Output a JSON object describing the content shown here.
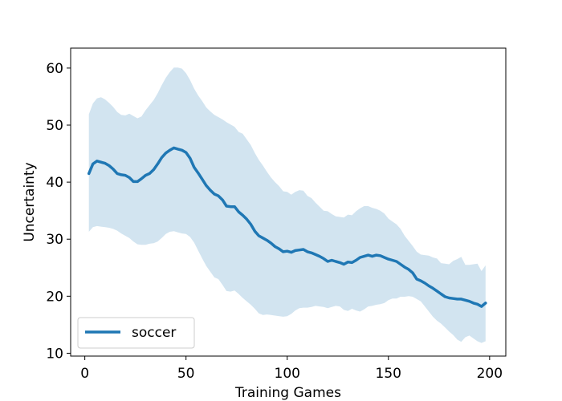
{
  "chart_data": {
    "type": "line",
    "title": "",
    "xlabel": "Training Games",
    "ylabel": "Uncertainty",
    "xlim": [
      -7,
      208
    ],
    "ylim": [
      9.5,
      63.5
    ],
    "xticks": [
      0,
      50,
      100,
      150,
      200
    ],
    "yticks": [
      10,
      20,
      30,
      40,
      50,
      60
    ],
    "grid": false,
    "legend_position": "lower-left",
    "colors": {
      "line": "#1f77b4",
      "band": "#1f77b4"
    },
    "series": [
      {
        "name": "soccer",
        "x": [
          2,
          4,
          6,
          8,
          10,
          12,
          14,
          16,
          18,
          20,
          22,
          24,
          26,
          28,
          30,
          32,
          34,
          36,
          38,
          40,
          42,
          44,
          46,
          48,
          50,
          52,
          54,
          56,
          58,
          60,
          62,
          64,
          66,
          68,
          70,
          72,
          74,
          76,
          78,
          80,
          82,
          84,
          86,
          88,
          90,
          92,
          94,
          96,
          98,
          100,
          102,
          104,
          106,
          108,
          110,
          112,
          114,
          116,
          118,
          120,
          122,
          124,
          126,
          128,
          130,
          132,
          134,
          136,
          138,
          140,
          142,
          144,
          146,
          148,
          150,
          152,
          154,
          156,
          158,
          160,
          162,
          164,
          166,
          168,
          170,
          172,
          174,
          176,
          178,
          180,
          182,
          184,
          186,
          188,
          190,
          192,
          194,
          196,
          198
        ],
        "mean": [
          41.5,
          43.2,
          43.7,
          43.5,
          43.3,
          42.9,
          42.3,
          41.5,
          41.3,
          41.2,
          40.8,
          40.1,
          40.1,
          40.6,
          41.2,
          41.5,
          42.2,
          43.2,
          44.3,
          45.1,
          45.6,
          46.0,
          45.8,
          45.6,
          45.2,
          44.2,
          42.6,
          41.6,
          40.5,
          39.4,
          38.6,
          37.9,
          37.6,
          36.9,
          35.8,
          35.7,
          35.7,
          34.8,
          34.2,
          33.5,
          32.6,
          31.4,
          30.6,
          30.2,
          29.8,
          29.3,
          28.7,
          28.3,
          27.8,
          27.9,
          27.7,
          28.0,
          28.1,
          28.2,
          27.8,
          27.6,
          27.3,
          27.0,
          26.6,
          26.1,
          26.3,
          26.1,
          25.9,
          25.6,
          26.0,
          25.9,
          26.3,
          26.8,
          27.0,
          27.2,
          27.0,
          27.2,
          27.1,
          26.8,
          26.5,
          26.3,
          26.1,
          25.6,
          25.1,
          24.7,
          24.1,
          23.0,
          22.7,
          22.3,
          21.8,
          21.4,
          20.9,
          20.4,
          19.9,
          19.7,
          19.6,
          19.5,
          19.5,
          19.3,
          19.1,
          18.8,
          18.6,
          18.2,
          18.8
        ],
        "lower": [
          31.3,
          32.1,
          32.3,
          32.2,
          32.1,
          32.0,
          31.8,
          31.5,
          31.0,
          30.6,
          30.2,
          29.6,
          29.1,
          29.0,
          29.0,
          29.2,
          29.3,
          29.6,
          30.2,
          30.9,
          31.3,
          31.4,
          31.2,
          31.0,
          30.9,
          30.4,
          29.4,
          28.0,
          26.6,
          25.3,
          24.3,
          23.3,
          23.0,
          22.0,
          20.9,
          20.8,
          21.0,
          20.4,
          19.7,
          19.1,
          18.5,
          17.8,
          17.0,
          16.7,
          16.8,
          16.7,
          16.6,
          16.5,
          16.4,
          16.5,
          16.9,
          17.5,
          17.9,
          18.0,
          18.0,
          18.1,
          18.3,
          18.2,
          18.1,
          17.9,
          18.1,
          18.3,
          18.2,
          17.6,
          17.4,
          17.8,
          17.5,
          17.3,
          17.7,
          18.2,
          18.3,
          18.5,
          18.6,
          18.8,
          19.3,
          19.6,
          19.6,
          19.9,
          19.9,
          20.0,
          19.9,
          19.5,
          19.1,
          18.2,
          17.3,
          16.4,
          15.7,
          15.2,
          14.5,
          13.8,
          13.2,
          12.4,
          12.0,
          12.8,
          13.1,
          12.6,
          12.1,
          11.8,
          12.1
        ],
        "upper": [
          51.9,
          53.8,
          54.7,
          54.9,
          54.5,
          53.9,
          53.2,
          52.3,
          51.8,
          51.7,
          52.0,
          51.6,
          51.2,
          51.5,
          52.6,
          53.5,
          54.4,
          55.6,
          57.0,
          58.3,
          59.3,
          60.1,
          60.1,
          59.9,
          59.1,
          57.9,
          56.4,
          55.2,
          54.2,
          53.1,
          52.4,
          51.8,
          51.4,
          51.0,
          50.5,
          50.1,
          49.7,
          48.8,
          48.5,
          47.5,
          46.5,
          45.1,
          43.9,
          42.9,
          41.8,
          40.8,
          40.0,
          39.3,
          38.4,
          38.3,
          37.8,
          38.3,
          38.6,
          38.5,
          37.6,
          37.2,
          36.4,
          35.7,
          35.0,
          34.9,
          34.4,
          34.0,
          33.9,
          33.8,
          34.3,
          34.2,
          34.9,
          35.4,
          35.8,
          35.8,
          35.5,
          35.3,
          35.0,
          34.5,
          33.6,
          33.1,
          32.6,
          31.8,
          30.6,
          29.7,
          28.8,
          27.8,
          27.3,
          27.2,
          27.1,
          26.8,
          26.6,
          25.8,
          25.7,
          25.6,
          26.2,
          26.5,
          26.9,
          25.5,
          25.5,
          25.6,
          25.7,
          24.4,
          25.4
        ]
      }
    ]
  }
}
